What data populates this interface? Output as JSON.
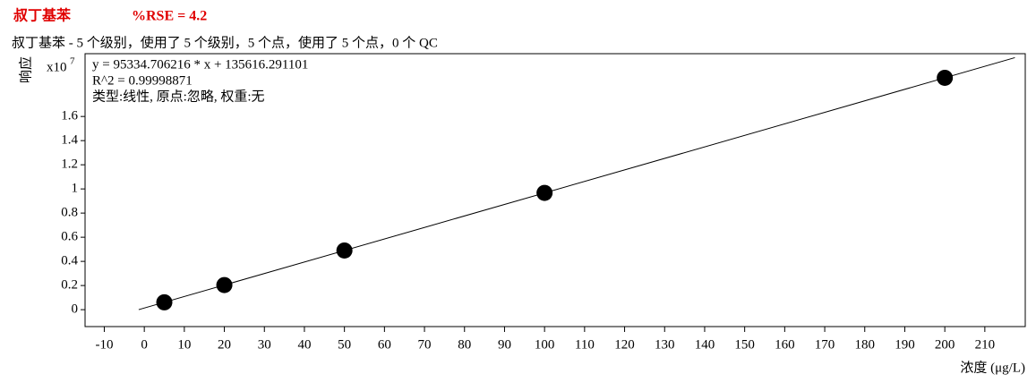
{
  "chart_data": {
    "type": "scatter",
    "title": "叔丁基苯",
    "rse": "%RSE = 4.2",
    "subtitle": "叔丁基苯 - 5 个级别，使用了 5 个级别，5 个点，使用了 5 个点，0 个 QC",
    "ylabel": "响应",
    "yscale_base": "x10",
    "yscale_exp": "7",
    "xlabel": "浓度 (μg/L)",
    "annotations": [
      "y = 95334.706216 * x   + 135616.291101",
      "R^2 = 0.99998871",
      "类型:线性, 原点:忽略, 权重:无"
    ],
    "x": [
      5,
      20,
      50,
      100,
      200
    ],
    "values": [
      0.061,
      0.204,
      0.49,
      0.967,
      1.92
    ],
    "color": "#000000",
    "fit": {
      "x": [
        -1.4,
        217.5
      ],
      "values": [
        0.0002,
        2.087
      ],
      "color": "#000000"
    },
    "xlim": [
      -14.8,
      220.1
    ],
    "ylim": [
      -0.14,
      2.12
    ],
    "xticks": [
      -10,
      0,
      10,
      20,
      30,
      40,
      50,
      60,
      70,
      80,
      90,
      100,
      110,
      120,
      130,
      140,
      150,
      160,
      170,
      180,
      190,
      200,
      210
    ],
    "yticks": [
      0,
      0.2,
      0.4,
      0.6,
      0.8,
      1,
      1.2,
      1.4,
      1.6
    ]
  }
}
